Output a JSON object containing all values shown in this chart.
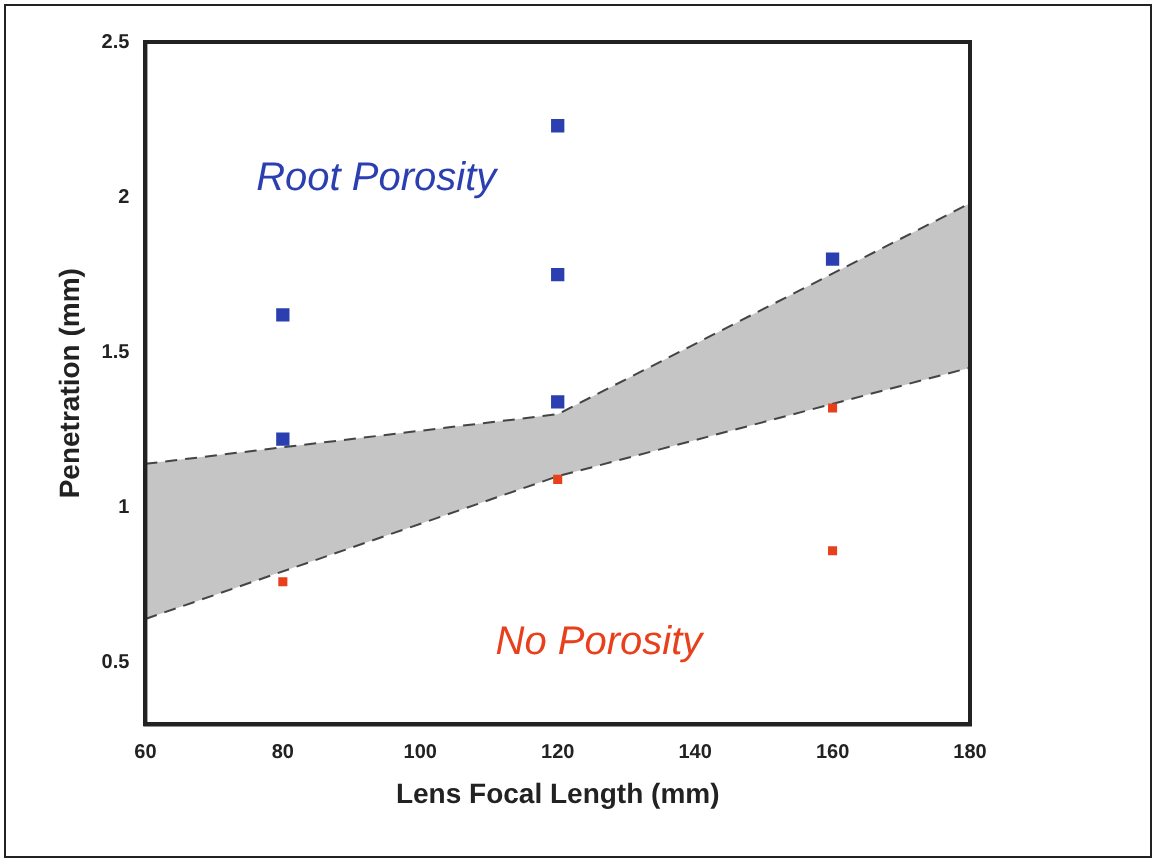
{
  "chart_data": {
    "type": "scatter",
    "xlabel": "Lens Focal Length (mm)",
    "ylabel": "Penetration (mm)",
    "xlim": [
      60,
      180
    ],
    "xticks": [
      60,
      80,
      100,
      120,
      140,
      160,
      180
    ],
    "ylim": [
      0.3,
      2.5
    ],
    "yticks": [
      0.5,
      1,
      1.5,
      2,
      2.5
    ],
    "marker": "square",
    "grid": false,
    "legend": false,
    "series": [
      {
        "name": "Root Porosity",
        "color": "#2b3fb0",
        "x": [
          80,
          80,
          120,
          120,
          120,
          160
        ],
        "values": [
          1.62,
          1.22,
          2.23,
          1.75,
          1.34,
          1.8
        ]
      },
      {
        "name": "No Porosity",
        "color": "#e8401c",
        "x": [
          80,
          120,
          160,
          160
        ],
        "values": [
          0.76,
          1.09,
          1.32,
          0.86
        ]
      },
      {
        "type": "line",
        "color": "#444444",
        "line_style": "dashed",
        "marker": "none",
        "x": [
          60,
          120,
          180
        ],
        "values": [
          0.64,
          1.1,
          1.45
        ]
      },
      {
        "type": "line",
        "color": "#444444",
        "line_style": "dashed",
        "marker": "none",
        "x": [
          60,
          120,
          180
        ],
        "values": [
          1.14,
          1.3,
          1.98
        ],
        "lower": [
          0.64,
          1.1,
          1.45
        ],
        "upper": [
          1.14,
          1.3,
          1.98
        ]
      }
    ]
  }
}
